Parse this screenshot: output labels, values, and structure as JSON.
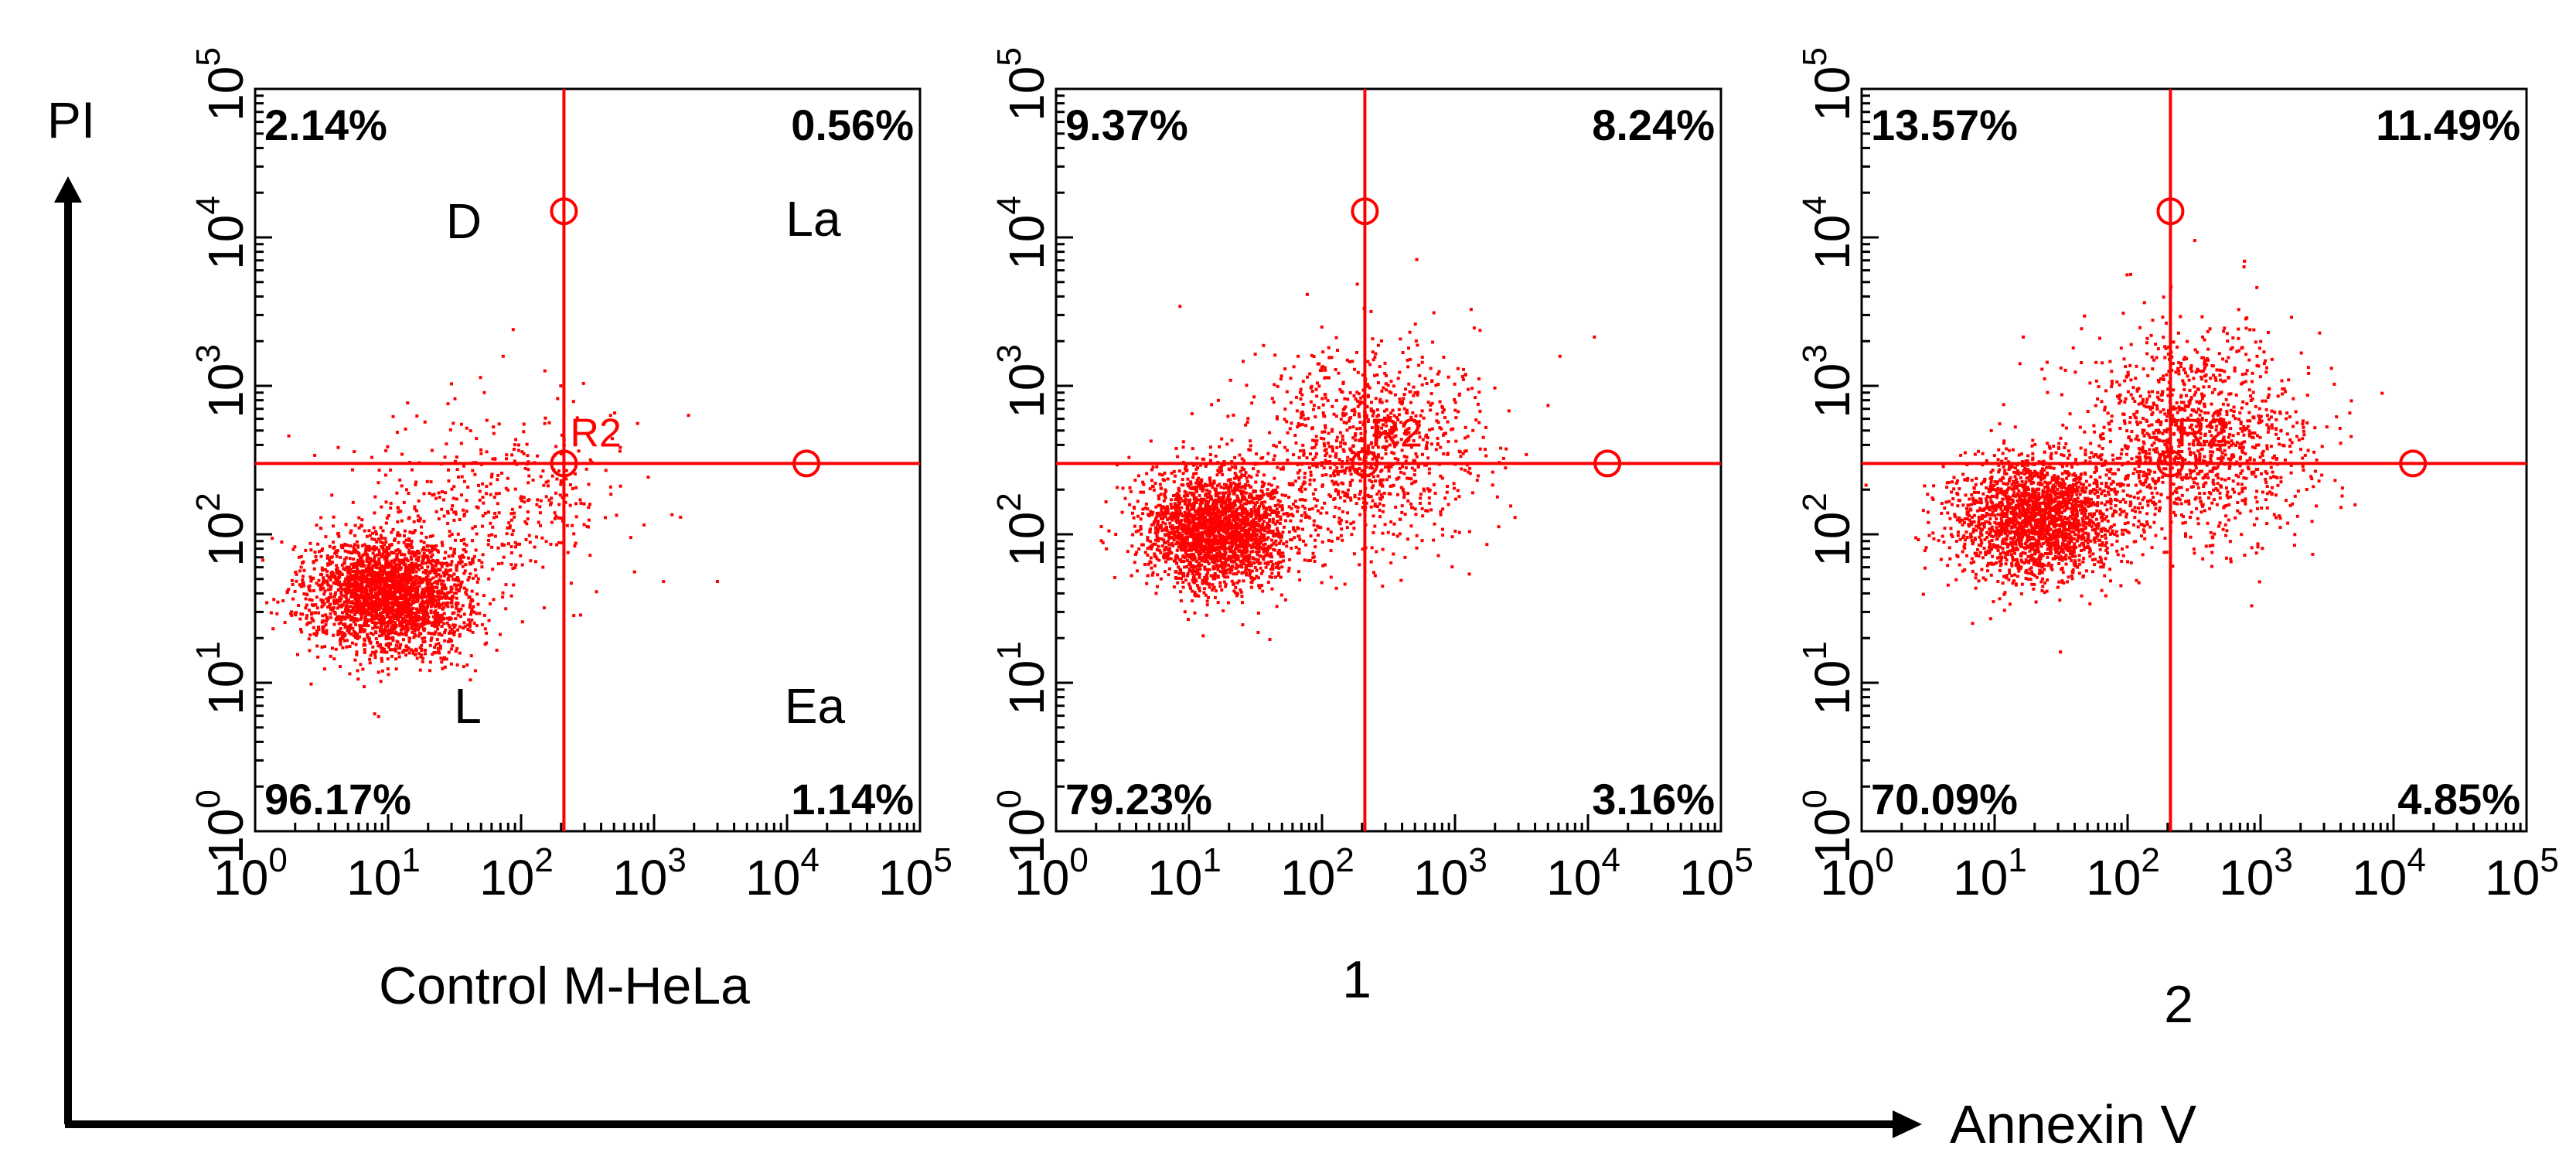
{
  "figure": {
    "y_axis_label": "PI",
    "x_axis_label": "Annexin V",
    "accent_color": "#ff0000",
    "axis_color": "#000000"
  },
  "chart_data": [
    {
      "type": "scatter",
      "title": "",
      "panel_label": "Control M-HeLa",
      "xlabel": "Annexin V",
      "ylabel": "PI",
      "x_scale": "log",
      "y_scale": "log",
      "xlim": [
        1,
        100000
      ],
      "ylim": [
        1,
        100000
      ],
      "grid": false,
      "x_ticks": [
        {
          "base": "10",
          "exp": "0"
        },
        {
          "base": "10",
          "exp": "1"
        },
        {
          "base": "10",
          "exp": "2"
        },
        {
          "base": "10",
          "exp": "3"
        },
        {
          "base": "10",
          "exp": "4"
        },
        {
          "base": "10",
          "exp": "5"
        }
      ],
      "y_ticks": [
        {
          "base": "10",
          "exp": "0"
        },
        {
          "base": "10",
          "exp": "1"
        },
        {
          "base": "10",
          "exp": "2"
        },
        {
          "base": "10",
          "exp": "3"
        },
        {
          "base": "10",
          "exp": "4"
        },
        {
          "base": "10",
          "exp": "5"
        }
      ],
      "gate": {
        "name": "R2",
        "x": 210,
        "y": 300,
        "handles": [
          {
            "x": 210,
            "y": 15000
          },
          {
            "x": 14000,
            "y": 300
          },
          {
            "x": 210,
            "y": 300
          }
        ]
      },
      "quadrant_percentages": {
        "upper_left": "2.14%",
        "upper_right": "0.56%",
        "lower_left": "96.17%",
        "lower_right": "1.14%"
      },
      "quadrant_letters": {
        "upper_left": "D",
        "upper_right": "La",
        "lower_left": "L",
        "lower_right": "Ea"
      },
      "point_color": "#ff0000",
      "clusters": [
        {
          "center_x": 10,
          "center_y": 40,
          "spread_x_log": 0.3,
          "spread_y_log": 0.2,
          "count": 2600
        },
        {
          "center_x": 60,
          "center_y": 180,
          "spread_x_log": 0.5,
          "spread_y_log": 0.3,
          "count": 400
        }
      ]
    },
    {
      "type": "scatter",
      "title": "",
      "panel_label": "1",
      "xlabel": "Annexin V",
      "ylabel": "PI",
      "x_scale": "log",
      "y_scale": "log",
      "xlim": [
        1,
        100000
      ],
      "ylim": [
        1,
        100000
      ],
      "grid": false,
      "x_ticks": [
        {
          "base": "10",
          "exp": "0"
        },
        {
          "base": "10",
          "exp": "1"
        },
        {
          "base": "10",
          "exp": "2"
        },
        {
          "base": "10",
          "exp": "3"
        },
        {
          "base": "10",
          "exp": "4"
        },
        {
          "base": "10",
          "exp": "5"
        }
      ],
      "y_ticks": [
        {
          "base": "10",
          "exp": "0"
        },
        {
          "base": "10",
          "exp": "1"
        },
        {
          "base": "10",
          "exp": "2"
        },
        {
          "base": "10",
          "exp": "3"
        },
        {
          "base": "10",
          "exp": "4"
        },
        {
          "base": "10",
          "exp": "5"
        }
      ],
      "gate": {
        "name": "R2",
        "x": 210,
        "y": 300,
        "handles": [
          {
            "x": 210,
            "y": 15000
          },
          {
            "x": 14000,
            "y": 300
          },
          {
            "x": 210,
            "y": 300
          }
        ]
      },
      "quadrant_percentages": {
        "upper_left": "9.37%",
        "upper_right": "8.24%",
        "lower_left": "79.23%",
        "lower_right": "3.16%"
      },
      "quadrant_letters": {},
      "point_color": "#ff0000",
      "clusters": [
        {
          "center_x": 16,
          "center_y": 110,
          "spread_x_log": 0.28,
          "spread_y_log": 0.2,
          "count": 2300
        },
        {
          "center_x": 200,
          "center_y": 400,
          "spread_x_log": 0.45,
          "spread_y_log": 0.35,
          "count": 1000
        }
      ]
    },
    {
      "type": "scatter",
      "title": "",
      "panel_label": "2",
      "xlabel": "Annexin V",
      "ylabel": "PI",
      "x_scale": "log",
      "y_scale": "log",
      "xlim": [
        1,
        100000
      ],
      "ylim": [
        1,
        100000
      ],
      "grid": false,
      "x_ticks": [
        {
          "base": "10",
          "exp": "0"
        },
        {
          "base": "10",
          "exp": "1"
        },
        {
          "base": "10",
          "exp": "2"
        },
        {
          "base": "10",
          "exp": "3"
        },
        {
          "base": "10",
          "exp": "4"
        },
        {
          "base": "10",
          "exp": "5"
        }
      ],
      "y_ticks": [
        {
          "base": "10",
          "exp": "0"
        },
        {
          "base": "10",
          "exp": "1"
        },
        {
          "base": "10",
          "exp": "2"
        },
        {
          "base": "10",
          "exp": "3"
        },
        {
          "base": "10",
          "exp": "4"
        },
        {
          "base": "10",
          "exp": "5"
        }
      ],
      "gate": {
        "name": "R2",
        "x": 210,
        "y": 300,
        "handles": [
          {
            "x": 210,
            "y": 15000
          },
          {
            "x": 14000,
            "y": 300
          },
          {
            "x": 210,
            "y": 300
          }
        ]
      },
      "quadrant_percentages": {
        "upper_left": "13.57%",
        "upper_right": "11.49%",
        "lower_left": "70.09%",
        "lower_right": "4.85%"
      },
      "quadrant_letters": {},
      "point_color": "#ff0000",
      "clusters": [
        {
          "center_x": 20,
          "center_y": 130,
          "spread_x_log": 0.3,
          "spread_y_log": 0.2,
          "count": 2100
        },
        {
          "center_x": 300,
          "center_y": 450,
          "spread_x_log": 0.45,
          "spread_y_log": 0.35,
          "count": 1300
        }
      ]
    }
  ]
}
